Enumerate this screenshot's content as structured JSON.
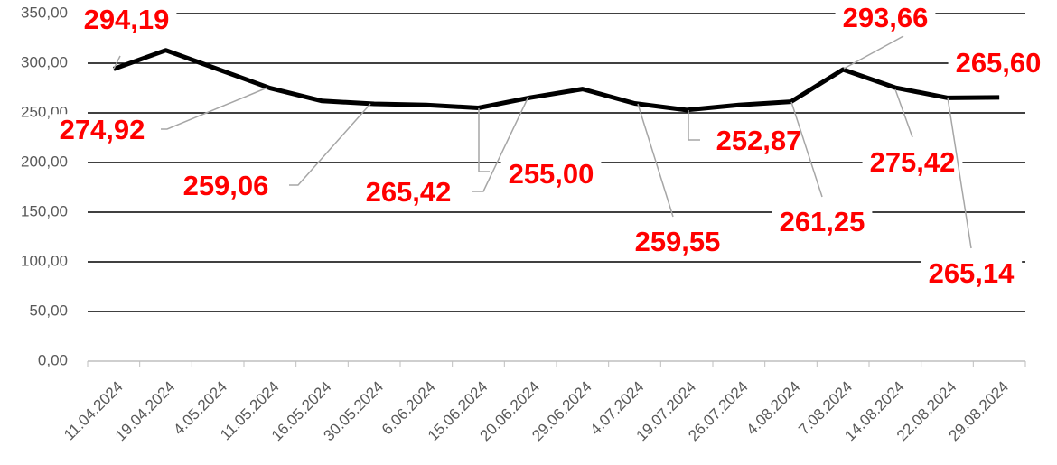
{
  "chart_data": {
    "type": "line",
    "categories": [
      "11.04.2024",
      "19.04.2024",
      "4.05.2024",
      "11.05.2024",
      "16.05.2024",
      "30.05.2024",
      "6.06.2024",
      "15.06.2024",
      "20.06.2024",
      "29.06.2024",
      "4.07.2024",
      "19.07.2024",
      "26.07.2024",
      "4.08.2024",
      "7.08.2024",
      "14.08.2024",
      "22.08.2024",
      "29.08.2024"
    ],
    "series": [
      {
        "color": "#000000",
        "values": [
          294.19,
          313,
          294,
          274.92,
          262,
          259.06,
          258,
          255.0,
          265.42,
          274,
          259.55,
          252.87,
          258,
          261.25,
          293.66,
          275.42,
          265.14,
          265.6
        ],
        "value_labels": [
          "294,19",
          null,
          null,
          "274,92",
          null,
          "259,06",
          null,
          "255,00",
          "265,42",
          null,
          "259,55",
          "252,87",
          null,
          "261,25",
          "293,66",
          "275,42",
          "265,14",
          "265,60"
        ]
      }
    ],
    "label_color": "#ff0000",
    "ylim": [
      0,
      350
    ],
    "yticks": [
      {
        "value": 0,
        "label": "0,00"
      },
      {
        "value": 50,
        "label": "50,00"
      },
      {
        "value": 100,
        "label": "100,00"
      },
      {
        "value": 150,
        "label": "150,00"
      },
      {
        "value": 200,
        "label": "200,00"
      },
      {
        "value": 250,
        "label": "250,00"
      },
      {
        "value": 300,
        "label": "300,00"
      },
      {
        "value": 350,
        "label": "350,00"
      }
    ],
    "grid": true
  }
}
